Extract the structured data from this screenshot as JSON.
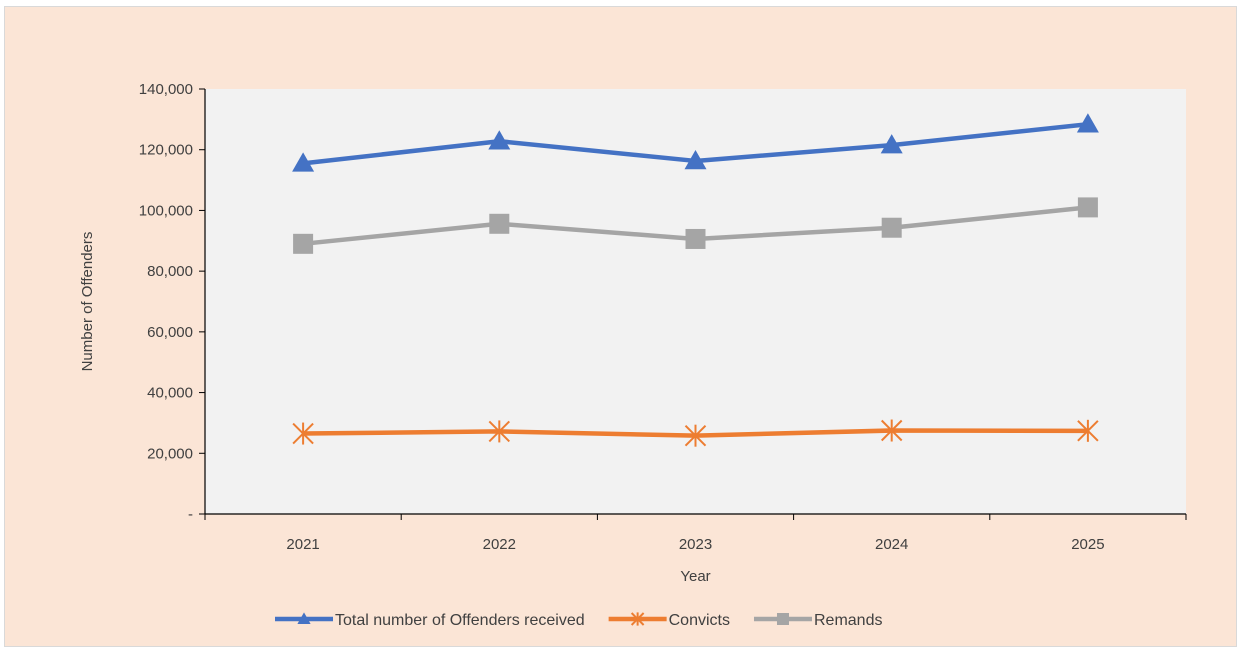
{
  "chart_data": {
    "type": "line",
    "title": "",
    "xlabel": "Year",
    "ylabel": "Number of Offenders",
    "categories": [
      "2021",
      "2022",
      "2023",
      "2024",
      "2025"
    ],
    "ylim": [
      0,
      140000
    ],
    "y_ticks": [
      0,
      20000,
      40000,
      60000,
      80000,
      100000,
      120000,
      140000
    ],
    "y_tick_labels": [
      "-",
      "20,000",
      "40,000",
      "60,000",
      "80,000",
      "100,000",
      "120,000",
      "140,000"
    ],
    "grid": false,
    "legend_position": "bottom",
    "series": [
      {
        "name": "Total number of Offenders received",
        "values": [
          115500,
          122800,
          116300,
          121500,
          128400
        ],
        "color": "#4472c4",
        "marker": "triangle"
      },
      {
        "name": "Convicts",
        "values": [
          26500,
          27200,
          25800,
          27500,
          27400
        ],
        "color": "#ed7d31",
        "marker": "star"
      },
      {
        "name": "Remands",
        "values": [
          89000,
          95600,
          90600,
          94300,
          101000
        ],
        "color": "#a5a5a5",
        "marker": "square"
      }
    ]
  }
}
